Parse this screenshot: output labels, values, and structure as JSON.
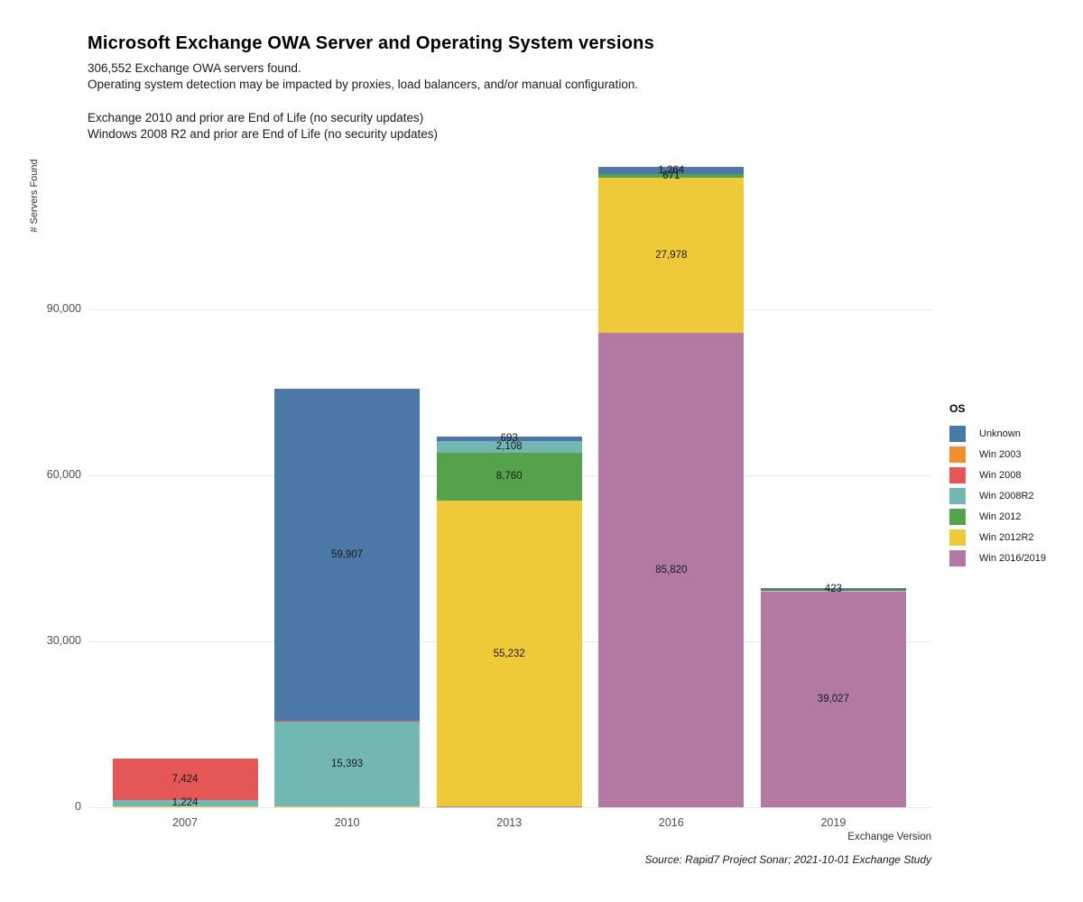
{
  "header": {
    "title": "Microsoft Exchange OWA Server and Operating System versions",
    "subtitle_line1": "306,552 Exchange OWA servers found.",
    "subtitle_line2": "Operating system detection may be impacted by proxies, load balancers, and/or manual configuration.",
    "note_line1": "Exchange 2010 and prior are End of Life (no security updates)",
    "note_line2": "Windows 2008 R2 and prior are End of Life (no security updates)"
  },
  "chart_data": {
    "type": "bar",
    "stacked": true,
    "title": "Microsoft Exchange OWA Server and Operating System versions",
    "xlabel": "Exchange Version",
    "ylabel": "# Servers Found",
    "source": "Source: Rapid7 Project Sonar; 2021-10-01 Exchange Study",
    "categories": [
      "2007",
      "2010",
      "2013",
      "2016",
      "2019"
    ],
    "y_ticks": [
      0,
      30000,
      60000,
      90000
    ],
    "y_tick_labels": [
      "0",
      "30,000",
      "60,000",
      "90,000"
    ],
    "ylim": [
      0,
      116600
    ],
    "grid": "horizontal-major-only",
    "legend_title": "OS",
    "legend_position": "right",
    "total_servers": 306552,
    "series": [
      {
        "name": "Unknown",
        "color": "#4c78a8",
        "values": [
          0,
          59907,
          693,
          1264,
          423
        ],
        "labels": [
          "",
          "59,907",
          "693",
          "1,264",
          "423"
        ]
      },
      {
        "name": "Win 2003",
        "color": "#f28e2c",
        "values": [
          0,
          0,
          0,
          0,
          0
        ],
        "labels": [
          "",
          "",
          "",
          "",
          ""
        ]
      },
      {
        "name": "Win 2008",
        "color": "#e45756",
        "values": [
          7424,
          150,
          0,
          0,
          0
        ],
        "labels": [
          "7,424",
          "",
          "",
          "",
          ""
        ]
      },
      {
        "name": "Win 2008R2",
        "color": "#72b7b2",
        "values": [
          1224,
          15393,
          2108,
          0,
          0
        ],
        "labels": [
          "1,224",
          "15,393",
          "2,108",
          "",
          ""
        ]
      },
      {
        "name": "Win 2012",
        "color": "#54a24b",
        "values": [
          0,
          0,
          8760,
          671,
          0
        ],
        "labels": [
          "",
          "",
          "8,760",
          "671",
          ""
        ]
      },
      {
        "name": "Win 2012R2",
        "color": "#eeca3b",
        "values": [
          100,
          90,
          55232,
          27978,
          158
        ],
        "labels": [
          "",
          "",
          "55,232",
          "27,978",
          ""
        ]
      },
      {
        "name": "Win 2016/2019",
        "color": "#b279a2",
        "values": [
          0,
          0,
          130,
          85820,
          39027
        ],
        "labels": [
          "",
          "",
          "",
          "85,820",
          "39,027"
        ]
      }
    ]
  }
}
